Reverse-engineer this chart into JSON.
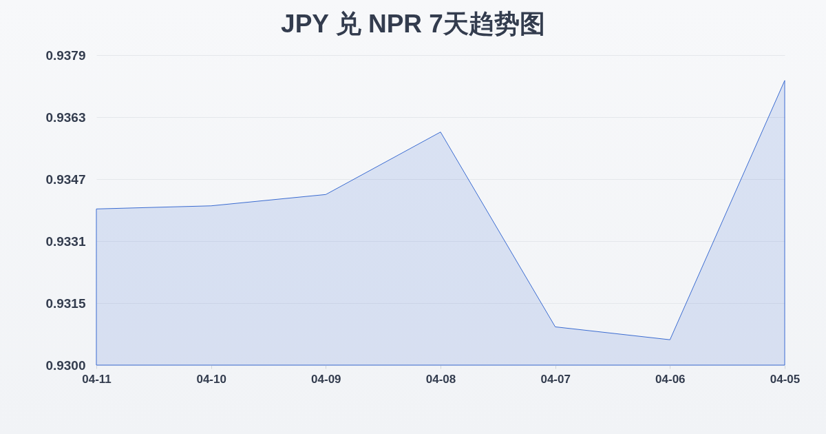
{
  "chart_data": {
    "type": "area",
    "title": "JPY 兑 NPR 7天趋势图",
    "categories": [
      "04-11",
      "04-10",
      "04-09",
      "04-08",
      "04-07",
      "04-06",
      "04-05"
    ],
    "series": [
      {
        "color": "#3a6bd1",
        "values": [
          0.93396,
          0.93404,
          0.93433,
          0.93593,
          0.93094,
          0.93061,
          0.93725
        ]
      }
    ],
    "ylim": [
      0.92996,
      0.9379
    ],
    "yticks": [
      {
        "value": 0.92996,
        "label": "0.9300"
      },
      {
        "value": 0.931548,
        "label": "0.9315"
      },
      {
        "value": 0.933136,
        "label": "0.9331"
      },
      {
        "value": 0.934724,
        "label": "0.9347"
      },
      {
        "value": 0.936312,
        "label": "0.9363"
      },
      0.9379
    ],
    "grid": "y"
  }
}
